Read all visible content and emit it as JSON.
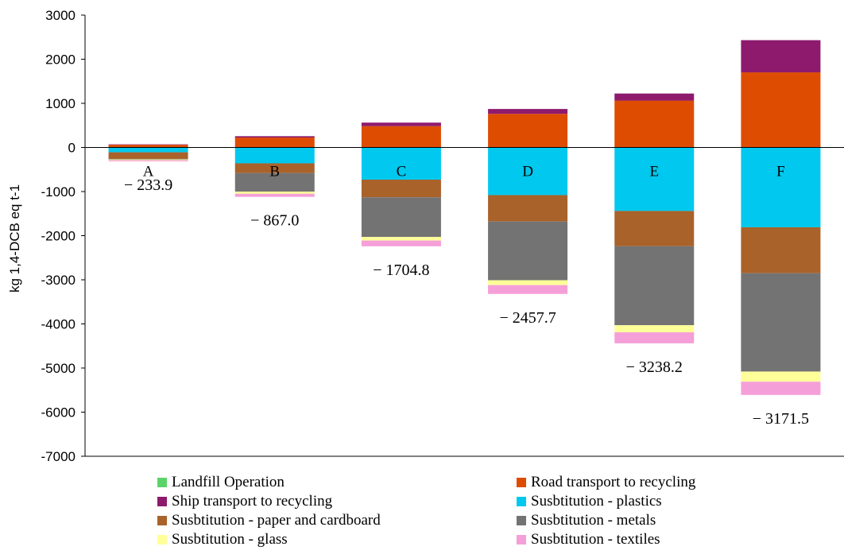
{
  "chart_data": {
    "type": "bar",
    "stacked": true,
    "title": "",
    "xlabel": "",
    "ylabel": "kg 1,4-DCB eq t-1",
    "ylim": [
      -7000,
      3000
    ],
    "yticks": [
      3000,
      2000,
      1000,
      0,
      -1000,
      -2000,
      -3000,
      -4000,
      -5000,
      -6000,
      -7000
    ],
    "grid": false,
    "legend_position": "bottom",
    "categories": [
      "A",
      "B",
      "C",
      "D",
      "E",
      "F"
    ],
    "net_labels": [
      "− 233.9",
      "− 867.0",
      "− 1704.8",
      "− 2457.7",
      "− 3238.2",
      "− 3171.5"
    ],
    "series": [
      {
        "name": "Landfill Operation",
        "color": "#5ad46a",
        "values": [
          10,
          5,
          3,
          2,
          2,
          2
        ]
      },
      {
        "name": "Road transport to recycling",
        "color": "#dd4c00",
        "values": [
          50,
          220,
          480,
          760,
          1060,
          1700
        ]
      },
      {
        "name": "Ship transport to recycling",
        "color": "#8e1a6e",
        "values": [
          10,
          30,
          80,
          110,
          160,
          730
        ]
      },
      {
        "name": "Susbtitution - plastics",
        "color": "#00c8ee",
        "values": [
          -110,
          -360,
          -730,
          -1080,
          -1440,
          -1810
        ]
      },
      {
        "name": "Susbtitution - paper and cardboard",
        "color": "#a8622a",
        "values": [
          -150,
          -220,
          -400,
          -600,
          -800,
          -1040
        ]
      },
      {
        "name": "Susbtitution - metals",
        "color": "#737373",
        "values": [
          -10,
          -420,
          -900,
          -1330,
          -1790,
          -2230
        ]
      },
      {
        "name": "Susbtitution - glass",
        "color": "#ffff99",
        "values": [
          -20,
          -50,
          -80,
          -110,
          -160,
          -230
        ]
      },
      {
        "name": "Susbtitution - textiles",
        "color": "#f59fd8",
        "values": [
          -25,
          -70,
          -130,
          -200,
          -250,
          -300
        ]
      }
    ]
  }
}
